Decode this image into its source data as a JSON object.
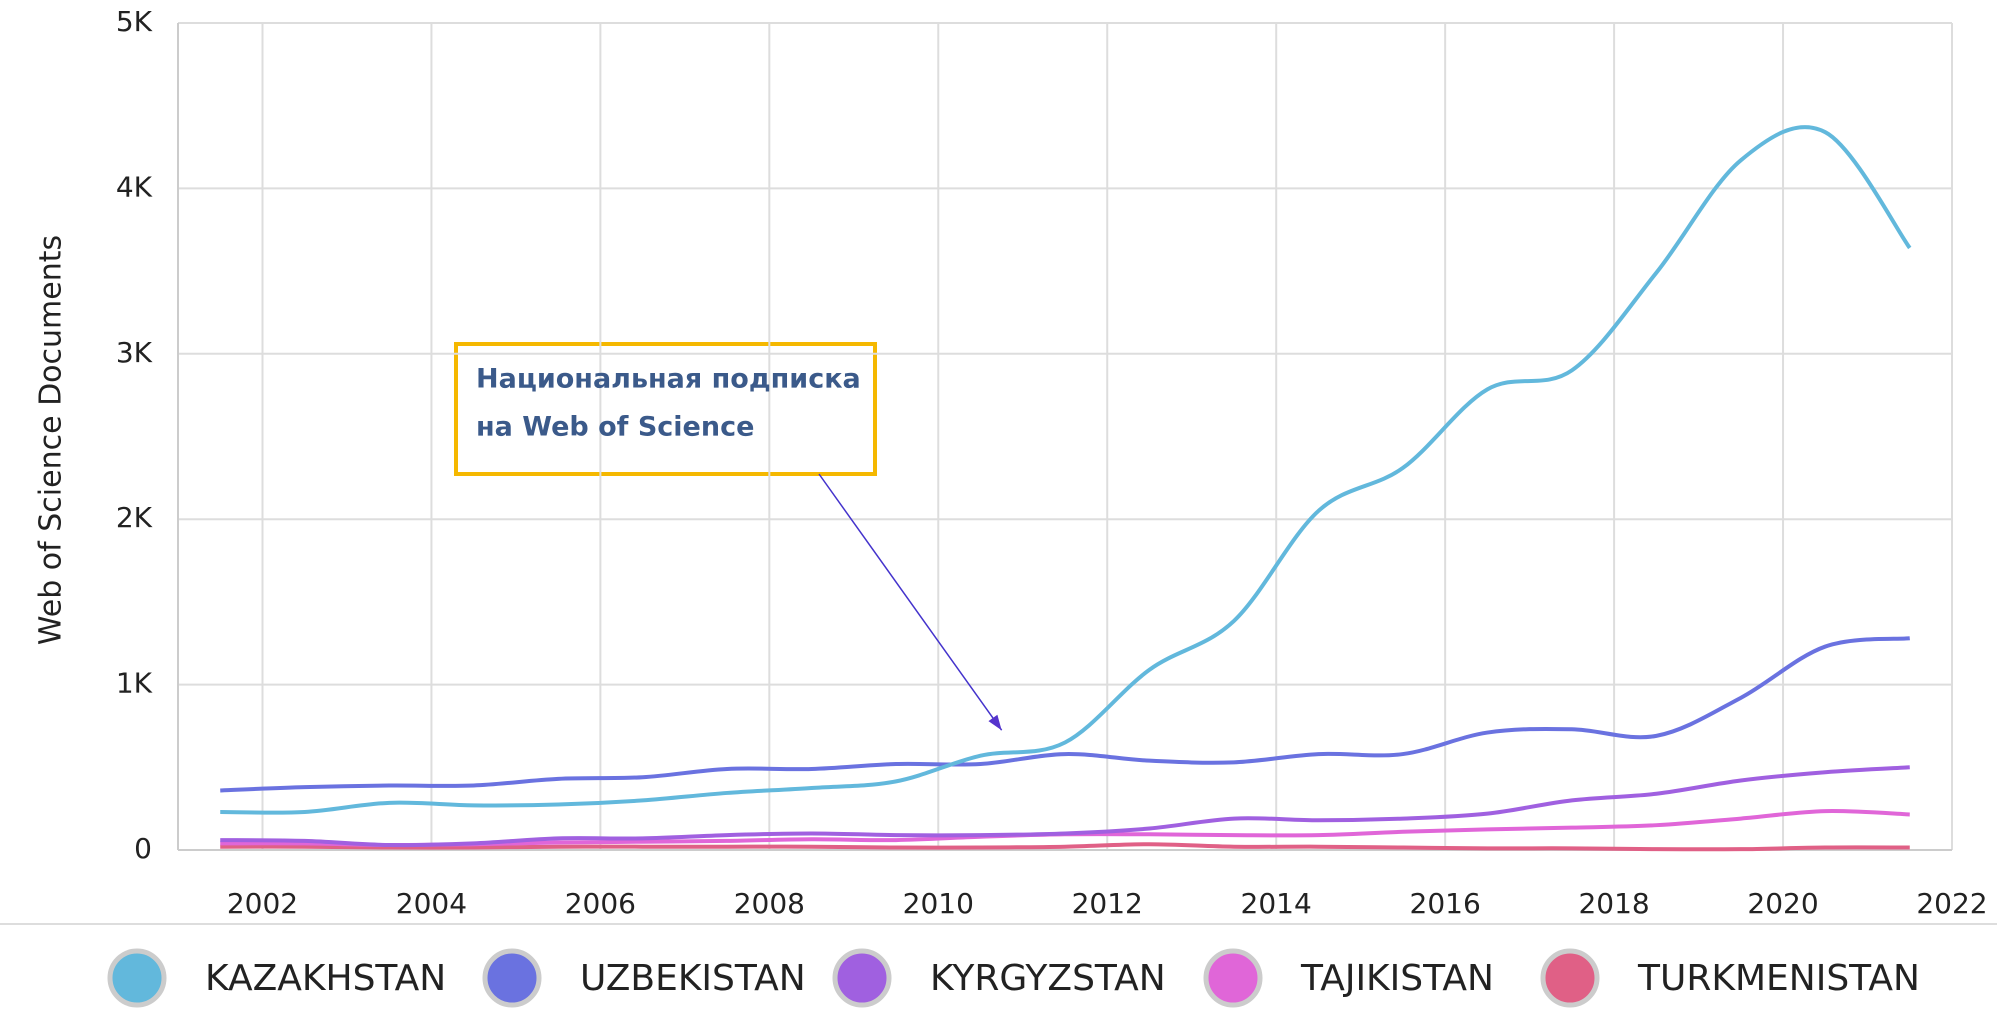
{
  "chart_data": {
    "type": "line",
    "y_axis_label": "Web of Science Documents",
    "x": [
      2001.5,
      2002.5,
      2003.5,
      2004.5,
      2005.5,
      2006.5,
      2007.5,
      2008.5,
      2009.5,
      2010.5,
      2011.5,
      2012.5,
      2013.5,
      2014.5,
      2015.5,
      2016.5,
      2017.5,
      2018.5,
      2019.5,
      2020.5,
      2021.5
    ],
    "series": [
      {
        "name": "KAZAKHSTAN",
        "color": "#62b8dc",
        "values": [
          230,
          230,
          285,
          270,
          275,
          300,
          345,
          375,
          415,
          570,
          650,
          1090,
          1385,
          2050,
          2310,
          2785,
          2900,
          3490,
          4170,
          4340,
          3640
        ]
      },
      {
        "name": "UZBEKISTAN",
        "color": "#6a72e0",
        "values": [
          360,
          380,
          390,
          390,
          430,
          440,
          490,
          490,
          520,
          520,
          580,
          540,
          530,
          580,
          580,
          710,
          730,
          690,
          920,
          1230,
          1280
        ]
      },
      {
        "name": "KYRGYZSTAN",
        "color": "#a060e0",
        "values": [
          60,
          55,
          30,
          40,
          70,
          70,
          90,
          100,
          90,
          90,
          100,
          130,
          190,
          180,
          190,
          220,
          300,
          340,
          420,
          470,
          500
        ]
      },
      {
        "name": "TAJIKISTAN",
        "color": "#e066d8",
        "values": [
          40,
          40,
          30,
          35,
          45,
          50,
          55,
          65,
          60,
          80,
          95,
          95,
          90,
          90,
          110,
          125,
          135,
          150,
          190,
          235,
          215
        ]
      },
      {
        "name": "TURKMENISTAN",
        "color": "#e06086",
        "values": [
          20,
          20,
          15,
          15,
          20,
          20,
          20,
          20,
          15,
          15,
          20,
          35,
          20,
          20,
          15,
          10,
          10,
          5,
          5,
          15,
          15
        ]
      }
    ],
    "xlim": [
      2001,
      2022
    ],
    "xticks": [
      2002,
      2004,
      2006,
      2008,
      2010,
      2012,
      2014,
      2016,
      2018,
      2020,
      2022
    ],
    "ylim": [
      0,
      5000
    ],
    "yticks": [
      0,
      {
        "value": 1000,
        "label": "1K"
      },
      {
        "value": 2000,
        "label": "2K"
      },
      {
        "value": 3000,
        "label": "3K"
      },
      {
        "value": 4000,
        "label": "4K"
      },
      {
        "value": 5000,
        "label": "5K"
      }
    ],
    "grid": true,
    "legend": "bottom",
    "annotation": {
      "lines": [
        "Национальная подписка",
        "на Web of Science"
      ],
      "x": 2010.75,
      "y": 700
    }
  }
}
